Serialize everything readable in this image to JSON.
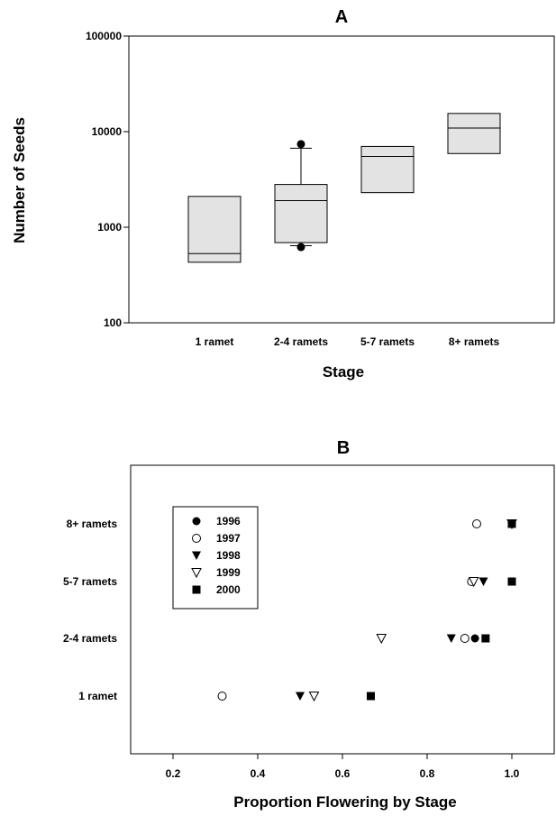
{
  "chart_data": [
    {
      "type": "box",
      "title": "A",
      "xlabel": "Stage",
      "ylabel": "Number of Seeds",
      "y_scale": "log",
      "ylim": [
        100,
        100000
      ],
      "y_ticks": [
        {
          "value": 100,
          "label": "100"
        },
        {
          "value": 1000,
          "label": "1000"
        },
        {
          "value": 10000,
          "label": "10000"
        },
        {
          "value": 100000,
          "label": "100000"
        }
      ],
      "categories": [
        "1 ramet",
        "2-4 ramets",
        "5-7 ramets",
        "8+ ramets"
      ],
      "boxes": [
        {
          "q1": 430,
          "median": 530,
          "q3": 2100
        },
        {
          "q1": 690,
          "median": 1900,
          "q3": 2800,
          "whisker_low": 640,
          "whisker_high": 6700,
          "outliers": [
            620,
            7400
          ]
        },
        {
          "q1": 2300,
          "median": 5500,
          "q3": 7000
        },
        {
          "q1": 5900,
          "median": 10900,
          "q3": 15500
        }
      ],
      "grid": false,
      "box_fill": "#e3e3e3"
    },
    {
      "type": "scatter",
      "title": "B",
      "xlabel": "Proportion Flowering by Stage",
      "ylabel": "",
      "xlim": [
        0.1,
        1.1
      ],
      "x_ticks": [
        {
          "value": 0.2,
          "label": "0.2"
        },
        {
          "value": 0.4,
          "label": "0.4"
        },
        {
          "value": 0.6,
          "label": "0.6"
        },
        {
          "value": 0.8,
          "label": "0.8"
        },
        {
          "value": 1.0,
          "label": "1.0"
        }
      ],
      "categories": [
        "1 ramet",
        "2-4 ramets",
        "5-7 ramets",
        "8+ ramets"
      ],
      "legend_position": "top-left",
      "series": [
        {
          "name": "1996",
          "marker": "circle-filled",
          "values": [
            0.667,
            0.913,
            1.0,
            1.0
          ]
        },
        {
          "name": "1997",
          "marker": "circle-open",
          "values": [
            0.316,
            0.889,
            0.905,
            0.917
          ]
        },
        {
          "name": "1998",
          "marker": "triangle-down-filled",
          "values": [
            0.5,
            0.857,
            0.933,
            1.0
          ]
        },
        {
          "name": "1999",
          "marker": "triangle-down-open",
          "values": [
            0.533,
            0.692,
            0.91,
            1.0
          ]
        },
        {
          "name": "2000",
          "marker": "square-filled",
          "values": [
            0.667,
            0.938,
            1.0,
            1.0
          ]
        }
      ],
      "grid": false
    }
  ]
}
